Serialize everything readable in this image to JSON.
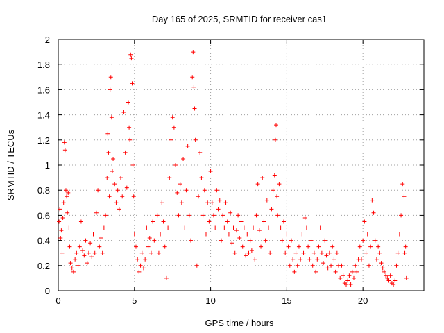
{
  "chart_data": {
    "type": "scatter",
    "title": "Day 165 of 2025, SRMTID for receiver cas1",
    "xlabel": "GPS time / hours",
    "ylabel": "SRMTID / TECUs",
    "xlim": [
      0,
      24
    ],
    "ylim": [
      0,
      2
    ],
    "xticks": [
      0,
      5,
      10,
      15,
      20
    ],
    "yticks": [
      0,
      0.2,
      0.4,
      0.6,
      0.8,
      1,
      1.2,
      1.4,
      1.6,
      1.8,
      2
    ],
    "xtick_labels": [
      "0",
      "5",
      "10",
      "15",
      "20"
    ],
    "ytick_labels": [
      "0",
      "0.2",
      "0.4",
      "0.6",
      "0.8",
      "1",
      "1.2",
      "1.4",
      "1.6",
      "1.8",
      "2"
    ],
    "grid": true,
    "marker": "+",
    "color": "#ff0000",
    "series": [
      {
        "name": "cas1",
        "points": [
          [
            0.05,
            0.55
          ],
          [
            0.1,
            0.65
          ],
          [
            0.15,
            0.42
          ],
          [
            0.2,
            0.48
          ],
          [
            0.25,
            0.3
          ],
          [
            0.3,
            0.58
          ],
          [
            0.35,
            0.7
          ],
          [
            0.4,
            1.18
          ],
          [
            0.45,
            1.12
          ],
          [
            0.5,
            0.8
          ],
          [
            0.55,
            0.75
          ],
          [
            0.6,
            0.62
          ],
          [
            0.65,
            0.78
          ],
          [
            0.7,
            0.5
          ],
          [
            0.75,
            0.35
          ],
          [
            0.8,
            0.22
          ],
          [
            0.9,
            0.18
          ],
          [
            1.0,
            0.15
          ],
          [
            1.1,
            0.25
          ],
          [
            1.2,
            0.3
          ],
          [
            1.3,
            0.2
          ],
          [
            1.4,
            0.35
          ],
          [
            1.5,
            0.55
          ],
          [
            1.6,
            0.32
          ],
          [
            1.7,
            0.28
          ],
          [
            1.8,
            0.4
          ],
          [
            1.9,
            0.22
          ],
          [
            2.0,
            0.3
          ],
          [
            2.1,
            0.38
          ],
          [
            2.2,
            0.27
          ],
          [
            2.3,
            0.45
          ],
          [
            2.4,
            0.3
          ],
          [
            2.5,
            0.62
          ],
          [
            2.6,
            0.8
          ],
          [
            2.7,
            0.35
          ],
          [
            2.8,
            0.42
          ],
          [
            2.9,
            0.3
          ],
          [
            3.0,
            0.5
          ],
          [
            3.1,
            0.6
          ],
          [
            3.2,
            0.9
          ],
          [
            3.25,
            1.25
          ],
          [
            3.3,
            1.1
          ],
          [
            3.35,
            0.75
          ],
          [
            3.4,
            1.6
          ],
          [
            3.45,
            1.7
          ],
          [
            3.5,
            1.38
          ],
          [
            3.55,
            0.95
          ],
          [
            3.6,
            1.05
          ],
          [
            3.7,
            0.85
          ],
          [
            3.8,
            0.7
          ],
          [
            3.9,
            0.8
          ],
          [
            4.0,
            0.65
          ],
          [
            4.1,
            0.9
          ],
          [
            4.2,
            0.75
          ],
          [
            4.3,
            1.42
          ],
          [
            4.4,
            1.1
          ],
          [
            4.5,
            0.82
          ],
          [
            4.6,
            1.5
          ],
          [
            4.65,
            1.3
          ],
          [
            4.7,
            1.2
          ],
          [
            4.75,
            1.88
          ],
          [
            4.8,
            1.85
          ],
          [
            4.85,
            1.65
          ],
          [
            4.9,
            1.0
          ],
          [
            4.95,
            0.75
          ],
          [
            5.0,
            0.45
          ],
          [
            5.1,
            0.35
          ],
          [
            5.2,
            0.25
          ],
          [
            5.3,
            0.15
          ],
          [
            5.4,
            0.2
          ],
          [
            5.5,
            0.3
          ],
          [
            5.6,
            0.18
          ],
          [
            5.7,
            0.25
          ],
          [
            5.8,
            0.5
          ],
          [
            5.9,
            0.35
          ],
          [
            6.0,
            0.42
          ],
          [
            6.1,
            0.3
          ],
          [
            6.2,
            0.55
          ],
          [
            6.3,
            0.4
          ],
          [
            6.5,
            0.6
          ],
          [
            6.6,
            0.3
          ],
          [
            6.7,
            0.45
          ],
          [
            6.8,
            0.7
          ],
          [
            6.9,
            0.55
          ],
          [
            7.0,
            0.35
          ],
          [
            7.1,
            0.1
          ],
          [
            7.2,
            0.5
          ],
          [
            7.3,
            0.9
          ],
          [
            7.4,
            1.2
          ],
          [
            7.5,
            1.38
          ],
          [
            7.6,
            1.3
          ],
          [
            7.7,
            1.0
          ],
          [
            7.8,
            0.78
          ],
          [
            7.9,
            0.6
          ],
          [
            8.0,
            0.85
          ],
          [
            8.1,
            0.7
          ],
          [
            8.2,
            1.05
          ],
          [
            8.3,
            0.5
          ],
          [
            8.4,
            0.8
          ],
          [
            8.5,
            1.15
          ],
          [
            8.6,
            0.6
          ],
          [
            8.7,
            0.4
          ],
          [
            8.8,
            1.7
          ],
          [
            8.85,
            1.9
          ],
          [
            8.9,
            1.62
          ],
          [
            8.95,
            1.45
          ],
          [
            9.0,
            1.2
          ],
          [
            9.1,
            0.2
          ],
          [
            9.2,
            0.75
          ],
          [
            9.3,
            1.1
          ],
          [
            9.4,
            0.9
          ],
          [
            9.5,
            0.6
          ],
          [
            9.6,
            0.8
          ],
          [
            9.7,
            0.45
          ],
          [
            9.8,
            0.7
          ],
          [
            9.9,
            0.55
          ],
          [
            10.0,
            0.95
          ],
          [
            10.1,
            0.7
          ],
          [
            10.2,
            0.6
          ],
          [
            10.3,
            0.5
          ],
          [
            10.4,
            0.8
          ],
          [
            10.5,
            0.65
          ],
          [
            10.6,
            0.72
          ],
          [
            10.7,
            0.4
          ],
          [
            10.8,
            0.6
          ],
          [
            10.9,
            0.5
          ],
          [
            11.0,
            0.7
          ],
          [
            11.1,
            0.55
          ],
          [
            11.2,
            0.45
          ],
          [
            11.3,
            0.62
          ],
          [
            11.4,
            0.38
          ],
          [
            11.5,
            0.5
          ],
          [
            11.6,
            0.3
          ],
          [
            11.7,
            0.48
          ],
          [
            11.8,
            0.6
          ],
          [
            11.9,
            0.42
          ],
          [
            12.0,
            0.55
          ],
          [
            12.1,
            0.35
          ],
          [
            12.2,
            0.5
          ],
          [
            12.3,
            0.28
          ],
          [
            12.4,
            0.45
          ],
          [
            12.5,
            0.3
          ],
          [
            12.6,
            0.4
          ],
          [
            12.7,
            0.32
          ],
          [
            12.8,
            0.5
          ],
          [
            12.9,
            0.25
          ],
          [
            13.0,
            0.6
          ],
          [
            13.1,
            0.85
          ],
          [
            13.2,
            0.48
          ],
          [
            13.3,
            0.35
          ],
          [
            13.4,
            0.9
          ],
          [
            13.5,
            0.55
          ],
          [
            13.6,
            0.4
          ],
          [
            13.7,
            0.72
          ],
          [
            13.8,
            0.5
          ],
          [
            13.9,
            0.3
          ],
          [
            14.0,
            0.65
          ],
          [
            14.1,
            0.8
          ],
          [
            14.2,
            0.92
          ],
          [
            14.25,
            1.2
          ],
          [
            14.3,
            1.32
          ],
          [
            14.35,
            0.75
          ],
          [
            14.4,
            0.6
          ],
          [
            14.5,
            0.85
          ],
          [
            14.6,
            0.5
          ],
          [
            14.7,
            0.4
          ],
          [
            14.8,
            0.55
          ],
          [
            14.9,
            0.3
          ],
          [
            15.0,
            0.45
          ],
          [
            15.1,
            0.35
          ],
          [
            15.2,
            0.2
          ],
          [
            15.3,
            0.4
          ],
          [
            15.4,
            0.25
          ],
          [
            15.5,
            0.15
          ],
          [
            15.6,
            0.3
          ],
          [
            15.7,
            0.2
          ],
          [
            15.8,
            0.35
          ],
          [
            15.9,
            0.25
          ],
          [
            16.0,
            0.45
          ],
          [
            16.1,
            0.3
          ],
          [
            16.2,
            0.58
          ],
          [
            16.3,
            0.5
          ],
          [
            16.4,
            0.35
          ],
          [
            16.5,
            0.25
          ],
          [
            16.6,
            0.4
          ],
          [
            16.7,
            0.2
          ],
          [
            16.8,
            0.3
          ],
          [
            16.9,
            0.15
          ],
          [
            17.0,
            0.25
          ],
          [
            17.1,
            0.35
          ],
          [
            17.2,
            0.5
          ],
          [
            17.3,
            0.3
          ],
          [
            17.4,
            0.22
          ],
          [
            17.5,
            0.4
          ],
          [
            17.6,
            0.28
          ],
          [
            17.7,
            0.18
          ],
          [
            17.8,
            0.3
          ],
          [
            17.9,
            0.2
          ],
          [
            18.0,
            0.35
          ],
          [
            18.1,
            0.25
          ],
          [
            18.2,
            0.15
          ],
          [
            18.3,
            0.3
          ],
          [
            18.4,
            0.2
          ],
          [
            18.5,
            0.1
          ],
          [
            18.6,
            0.2
          ],
          [
            18.7,
            0.12
          ],
          [
            18.8,
            0.06
          ],
          [
            18.9,
            0.05
          ],
          [
            19.0,
            0.08
          ],
          [
            19.1,
            0.12
          ],
          [
            19.2,
            0.05
          ],
          [
            19.3,
            0.15
          ],
          [
            19.4,
            0.1
          ],
          [
            19.5,
            0.2
          ],
          [
            19.6,
            0.15
          ],
          [
            19.7,
            0.25
          ],
          [
            19.8,
            0.35
          ],
          [
            19.9,
            0.25
          ],
          [
            20.0,
            0.4
          ],
          [
            20.1,
            0.55
          ],
          [
            20.2,
            0.3
          ],
          [
            20.3,
            0.45
          ],
          [
            20.4,
            0.2
          ],
          [
            20.5,
            0.35
          ],
          [
            20.6,
            0.72
          ],
          [
            20.7,
            0.62
          ],
          [
            20.8,
            0.4
          ],
          [
            20.9,
            0.25
          ],
          [
            21.0,
            0.35
          ],
          [
            21.1,
            0.3
          ],
          [
            21.2,
            0.22
          ],
          [
            21.3,
            0.18
          ],
          [
            21.4,
            0.15
          ],
          [
            21.5,
            0.12
          ],
          [
            21.6,
            0.1
          ],
          [
            21.7,
            0.08
          ],
          [
            21.8,
            0.12
          ],
          [
            21.9,
            0.06
          ],
          [
            22.0,
            0.05
          ],
          [
            22.1,
            0.08
          ],
          [
            22.2,
            0.2
          ],
          [
            22.3,
            0.3
          ],
          [
            22.4,
            0.45
          ],
          [
            22.5,
            0.6
          ],
          [
            22.6,
            0.85
          ],
          [
            22.7,
            0.75
          ],
          [
            22.75,
            0.3
          ],
          [
            22.8,
            0.35
          ],
          [
            22.85,
            0.1
          ]
        ]
      }
    ]
  }
}
